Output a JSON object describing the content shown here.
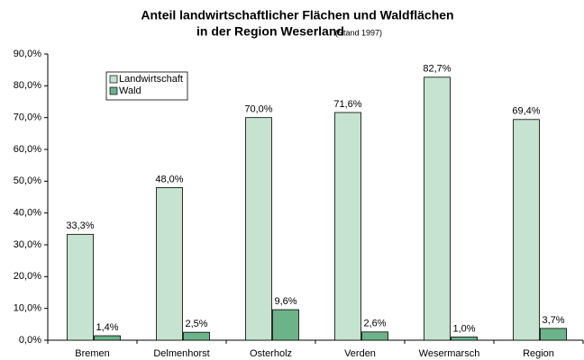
{
  "chart_data": {
    "type": "bar",
    "title": [
      "Anteil landwirtschaftlicher Flächen und Waldflächen",
      "in der Region Weserland"
    ],
    "subtitle": "(Stand 1997)",
    "categories": [
      "Bremen",
      "Delmenhorst",
      "Osterholz",
      "Verden",
      "Wesermarsch",
      "Region"
    ],
    "series": [
      {
        "name": "Landwirtschaft",
        "color": "#c6e2d0",
        "values": [
          33.3,
          48.0,
          70.0,
          71.6,
          82.7,
          69.4
        ],
        "value_labels": [
          "33,3%",
          "48,0%",
          "70,0%",
          "71,6%",
          "82,7%",
          "69,4%"
        ]
      },
      {
        "name": "Wald",
        "color": "#6cb38a",
        "values": [
          1.4,
          2.5,
          9.6,
          2.6,
          1.0,
          3.7
        ],
        "value_labels": [
          "1,4%",
          "2,5%",
          "9,6%",
          "2,6%",
          "1,0%",
          "3,7%"
        ]
      }
    ],
    "ylim": [
      0,
      90
    ],
    "yticks": [
      {
        "value": 0,
        "label": "0,0%"
      },
      {
        "value": 10,
        "label": "10,0%"
      },
      {
        "value": 20,
        "label": "20,0%"
      },
      {
        "value": 30,
        "label": "30,0%"
      },
      {
        "value": 40,
        "label": "40,0%"
      },
      {
        "value": 50,
        "label": "50,0%"
      },
      {
        "value": 60,
        "label": "60,0%"
      },
      {
        "value": 70,
        "label": "70,0%"
      },
      {
        "value": 80,
        "label": "80,0%"
      },
      {
        "value": 90,
        "label": "90,0%"
      }
    ],
    "legend": "upper left"
  }
}
